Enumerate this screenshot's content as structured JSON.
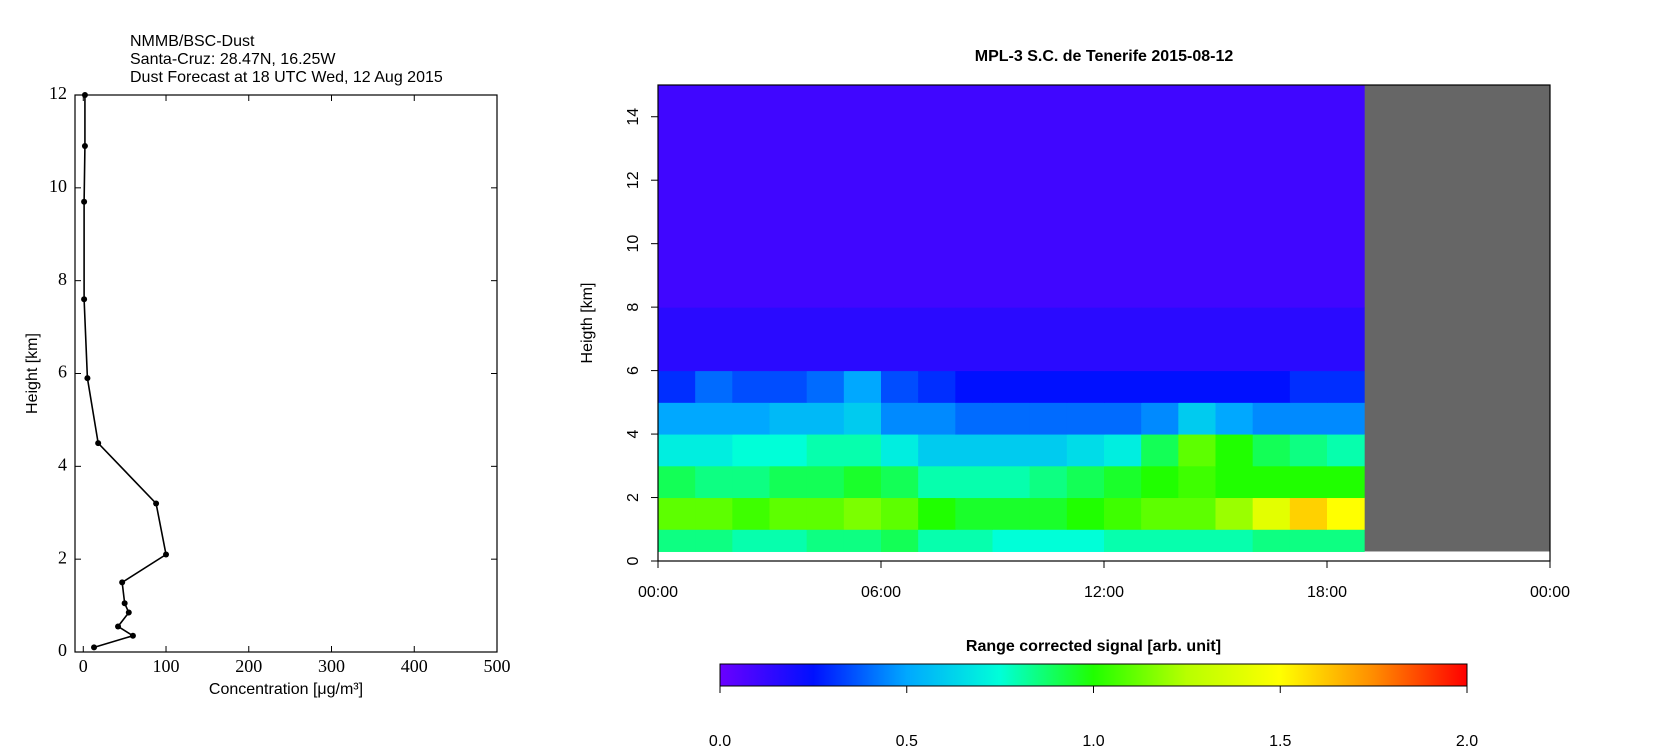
{
  "chart_data": [
    {
      "type": "line",
      "title_lines": [
        "NMMB/BSC-Dust",
        "Santa-Cruz: 28.47N, 16.25W",
        "Dust Forecast at 18 UTC Wed, 12 Aug 2015"
      ],
      "xlabel": "Concentration [μg/m³]",
      "ylabel": "Height [km]",
      "xlim": [
        -10,
        500
      ],
      "ylim": [
        0,
        12
      ],
      "xticks": [
        0,
        100,
        200,
        300,
        400,
        500
      ],
      "yticks": [
        0,
        2,
        4,
        6,
        8,
        10,
        12
      ],
      "series": [
        {
          "color": "#000000",
          "x": [
            13,
            60,
            42,
            55,
            50,
            47,
            100,
            88,
            18,
            5,
            1,
            1,
            2,
            2
          ],
          "y": [
            0.1,
            0.35,
            0.55,
            0.85,
            1.05,
            1.5,
            2.1,
            3.2,
            4.5,
            5.9,
            7.6,
            9.7,
            10.9,
            12
          ]
        }
      ]
    },
    {
      "type": "heatmap",
      "title": "MPL-3 S.C. de Tenerife 2015-08-12",
      "ylabel": "Heigth [km]",
      "colorbar_label": "Range corrected signal [arb. unit]",
      "xlim": [
        0,
        24
      ],
      "ylim": [
        0,
        15
      ],
      "xticks": [
        {
          "value": 0,
          "label": "00:00"
        },
        {
          "value": 6,
          "label": "06:00"
        },
        {
          "value": 12,
          "label": "12:00"
        },
        {
          "value": 18,
          "label": "18:00"
        },
        {
          "value": 24,
          "label": "00:00"
        }
      ],
      "yticks": [
        0,
        2,
        4,
        6,
        8,
        10,
        12,
        14
      ],
      "clim": [
        0,
        2
      ],
      "cticks": [
        {
          "value": 0,
          "label": "0.0"
        },
        {
          "value": 0.5,
          "label": "0.5"
        },
        {
          "value": 1,
          "label": "1.0"
        },
        {
          "value": 1.5,
          "label": "1.5"
        },
        {
          "value": 2,
          "label": "2.0"
        }
      ],
      "colorscale": [
        "#6a00ff",
        "#0010ff",
        "#00a8ff",
        "#00ffd8",
        "#20ff00",
        "#b8ff00",
        "#ffff00",
        "#ff8c00",
        "#ff0000"
      ],
      "nodata_color": "#666666",
      "xbins": [
        0,
        1,
        2,
        3,
        4,
        5,
        6,
        7,
        8,
        9,
        10,
        11,
        12,
        13,
        14,
        15,
        16,
        17,
        18,
        19,
        20,
        21,
        22,
        23,
        24
      ],
      "ybins": [
        0.3,
        1,
        2,
        3,
        4,
        5,
        6,
        8,
        15
      ],
      "z": [
        [
          0.85,
          0.85,
          0.8,
          0.8,
          0.85,
          0.85,
          0.9,
          0.8,
          0.8,
          0.75,
          0.75,
          0.75,
          0.8,
          0.8,
          0.8,
          0.8,
          0.85,
          0.85,
          0.85,
          null,
          null,
          null,
          null,
          null
        ],
        [
          1.1,
          1.1,
          1.05,
          1.1,
          1.1,
          1.15,
          1.1,
          1.0,
          0.95,
          0.95,
          0.95,
          1.0,
          1.05,
          1.1,
          1.1,
          1.2,
          1.4,
          1.6,
          1.5,
          null,
          null,
          null,
          null,
          null
        ],
        [
          0.9,
          0.85,
          0.85,
          0.9,
          0.9,
          0.95,
          0.9,
          0.8,
          0.8,
          0.8,
          0.85,
          0.9,
          0.95,
          1.0,
          1.05,
          1.0,
          1.0,
          1.0,
          1.0,
          null,
          null,
          null,
          null,
          null
        ],
        [
          0.7,
          0.7,
          0.75,
          0.75,
          0.8,
          0.8,
          0.7,
          0.6,
          0.6,
          0.6,
          0.6,
          0.65,
          0.7,
          0.9,
          1.1,
          1.0,
          0.9,
          0.85,
          0.8,
          null,
          null,
          null,
          null,
          null
        ],
        [
          0.5,
          0.5,
          0.5,
          0.55,
          0.55,
          0.6,
          0.45,
          0.45,
          0.4,
          0.4,
          0.4,
          0.4,
          0.4,
          0.45,
          0.6,
          0.5,
          0.45,
          0.45,
          0.45,
          null,
          null,
          null,
          null,
          null
        ],
        [
          0.3,
          0.4,
          0.35,
          0.35,
          0.4,
          0.5,
          0.35,
          0.3,
          0.25,
          0.25,
          0.25,
          0.25,
          0.25,
          0.25,
          0.25,
          0.25,
          0.25,
          0.3,
          0.3,
          null,
          null,
          null,
          null,
          null
        ],
        [
          0.15,
          0.15,
          0.15,
          0.15,
          0.15,
          0.15,
          0.15,
          0.15,
          0.15,
          0.15,
          0.15,
          0.15,
          0.15,
          0.15,
          0.15,
          0.15,
          0.15,
          0.15,
          0.15,
          null,
          null,
          null,
          null,
          null
        ],
        [
          0.1,
          0.1,
          0.1,
          0.1,
          0.1,
          0.1,
          0.1,
          0.1,
          0.1,
          0.1,
          0.1,
          0.1,
          0.1,
          0.1,
          0.1,
          0.1,
          0.1,
          0.1,
          0.1,
          null,
          null,
          null,
          null,
          null
        ]
      ]
    }
  ]
}
